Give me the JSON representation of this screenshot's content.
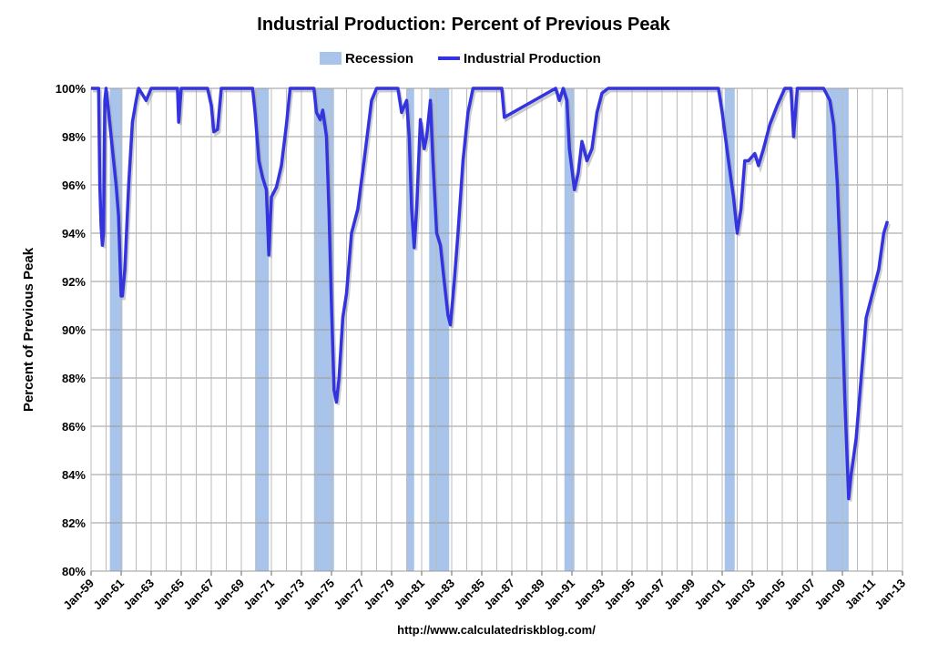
{
  "chart_data": {
    "type": "line",
    "title": "Industrial Production: Percent of Previous Peak",
    "y_label": "Percent of Previous Peak",
    "source": "http://www.calculatedriskblog.com/",
    "ylim": [
      80,
      100
    ],
    "yticks": [
      {
        "value": 80,
        "label": "80%"
      },
      {
        "value": 82,
        "label": "82%"
      },
      {
        "value": 84,
        "label": "84%"
      },
      {
        "value": 86,
        "label": "86%"
      },
      {
        "value": 88,
        "label": "88%"
      },
      {
        "value": 90,
        "label": "90%"
      },
      {
        "value": 92,
        "label": "92%"
      },
      {
        "value": 94,
        "label": "94%"
      },
      {
        "value": 96,
        "label": "96%"
      },
      {
        "value": 98,
        "label": "98%"
      },
      {
        "value": 100,
        "label": "100%"
      }
    ],
    "xlim": [
      "1959-01",
      "2013-01"
    ],
    "xticks": [
      {
        "value": "1959-01",
        "label": "Jan-59"
      },
      {
        "value": "1961-01",
        "label": "Jan-61"
      },
      {
        "value": "1963-01",
        "label": "Jan-63"
      },
      {
        "value": "1965-01",
        "label": "Jan-65"
      },
      {
        "value": "1967-01",
        "label": "Jan-67"
      },
      {
        "value": "1969-01",
        "label": "Jan-69"
      },
      {
        "value": "1971-01",
        "label": "Jan-71"
      },
      {
        "value": "1973-01",
        "label": "Jan-73"
      },
      {
        "value": "1975-01",
        "label": "Jan-75"
      },
      {
        "value": "1977-01",
        "label": "Jan-77"
      },
      {
        "value": "1979-01",
        "label": "Jan-79"
      },
      {
        "value": "1981-01",
        "label": "Jan-81"
      },
      {
        "value": "1983-01",
        "label": "Jan-83"
      },
      {
        "value": "1985-01",
        "label": "Jan-85"
      },
      {
        "value": "1987-01",
        "label": "Jan-87"
      },
      {
        "value": "1989-01",
        "label": "Jan-89"
      },
      {
        "value": "1991-01",
        "label": "Jan-91"
      },
      {
        "value": "1993-01",
        "label": "Jan-93"
      },
      {
        "value": "1995-01",
        "label": "Jan-95"
      },
      {
        "value": "1997-01",
        "label": "Jan-97"
      },
      {
        "value": "1999-01",
        "label": "Jan-99"
      },
      {
        "value": "2001-01",
        "label": "Jan-01"
      },
      {
        "value": "2003-01",
        "label": "Jan-03"
      },
      {
        "value": "2005-01",
        "label": "Jan-05"
      },
      {
        "value": "2007-01",
        "label": "Jan-07"
      },
      {
        "value": "2009-01",
        "label": "Jan-09"
      },
      {
        "value": "2011-01",
        "label": "Jan-11"
      },
      {
        "value": "2013-01",
        "label": "Jan-13"
      }
    ],
    "grid": true,
    "recessions": {
      "name": "Recession",
      "color": "#a9c4ea",
      "periods": [
        [
          "1960-04",
          "1961-02"
        ],
        [
          "1969-12",
          "1970-11"
        ],
        [
          "1973-11",
          "1975-03"
        ],
        [
          "1980-01",
          "1980-07"
        ],
        [
          "1981-07",
          "1982-11"
        ],
        [
          "1990-07",
          "1991-03"
        ],
        [
          "2001-03",
          "2001-11"
        ],
        [
          "2007-12",
          "2009-06"
        ]
      ]
    },
    "x": [
      "1959-01",
      "1959-07",
      "1959-08",
      "1959-09",
      "1959-10",
      "1959-11",
      "1959-12",
      "1960-01",
      "1960-03",
      "1960-06",
      "1960-09",
      "1960-11",
      "1961-01",
      "1961-02",
      "1961-04",
      "1961-07",
      "1961-10",
      "1962-01",
      "1962-03",
      "1962-09",
      "1963-01",
      "1964-10",
      "1964-11",
      "1965-01",
      "1966-10",
      "1967-01",
      "1967-03",
      "1967-06",
      "1967-09",
      "1967-11",
      "1969-10",
      "1969-12",
      "1970-03",
      "1970-06",
      "1970-09",
      "1970-11",
      "1971-01",
      "1971-05",
      "1971-09",
      "1972-01",
      "1972-04",
      "1973-11",
      "1974-01",
      "1974-04",
      "1974-06",
      "1974-09",
      "1974-11",
      "1975-01",
      "1975-03",
      "1975-05",
      "1975-07",
      "1975-10",
      "1976-01",
      "1976-05",
      "1976-10",
      "1977-03",
      "1977-09",
      "1978-01",
      "1979-06",
      "1979-09",
      "1980-01",
      "1980-03",
      "1980-05",
      "1980-07",
      "1980-09",
      "1980-12",
      "1981-03",
      "1981-05",
      "1981-08",
      "1981-10",
      "1982-01",
      "1982-04",
      "1982-07",
      "1982-10",
      "1982-12",
      "1983-03",
      "1983-06",
      "1983-10",
      "1984-02",
      "1984-06",
      "1986-05",
      "1986-07",
      "1989-12",
      "1990-03",
      "1990-06",
      "1990-09",
      "1990-11",
      "1991-03",
      "1991-06",
      "1991-09",
      "1992-01",
      "1992-05",
      "1992-09",
      "1993-01",
      "1993-06",
      "2000-10",
      "2001-01",
      "2001-06",
      "2001-10",
      "2002-01",
      "2002-04",
      "2002-07",
      "2002-10",
      "2003-03",
      "2003-06",
      "2003-10",
      "2004-03",
      "2004-09",
      "2005-03",
      "2005-08",
      "2005-10",
      "2006-01",
      "2007-10",
      "2008-03",
      "2008-06",
      "2008-09",
      "2008-12",
      "2009-03",
      "2009-06",
      "2009-08",
      "2009-12",
      "2010-04",
      "2010-08",
      "2011-01",
      "2011-06",
      "2011-10",
      "2012-01"
    ],
    "series": [
      {
        "name": "Industrial Production",
        "color": "#3333e0",
        "values": [
          100,
          100,
          96,
          94.3,
          93.5,
          94,
          99.5,
          100,
          99,
          97.5,
          96,
          94.7,
          91.4,
          91.4,
          92.5,
          96,
          98.6,
          99.5,
          100,
          99.5,
          100,
          100,
          98.6,
          100,
          100,
          99.3,
          98.2,
          98.3,
          100,
          100,
          100,
          99,
          97,
          96.3,
          95.8,
          93.1,
          95.5,
          95.9,
          96.8,
          98.5,
          100,
          100,
          99,
          98.7,
          99.1,
          98,
          95,
          91,
          87.5,
          87,
          88,
          90.5,
          91.5,
          94,
          95,
          97,
          99.5,
          100,
          100,
          99,
          99.5,
          98,
          95,
          93.4,
          95,
          98.7,
          97.5,
          98,
          99.5,
          97,
          94,
          93.5,
          92,
          90.6,
          90.2,
          92,
          94,
          97,
          99,
          100,
          100,
          98.8,
          100,
          99.5,
          100,
          99.5,
          97.5,
          95.8,
          96.5,
          97.8,
          97,
          97.5,
          99,
          99.8,
          100,
          100,
          99,
          97,
          95.5,
          94,
          95,
          97,
          97,
          97.3,
          96.8,
          97.5,
          98.5,
          99.3,
          100,
          100,
          98,
          100,
          100,
          99.5,
          98.5,
          96,
          92,
          87,
          83,
          84,
          85.5,
          88,
          90.5,
          91.5,
          92.5,
          94,
          94.5
        ]
      }
    ]
  }
}
